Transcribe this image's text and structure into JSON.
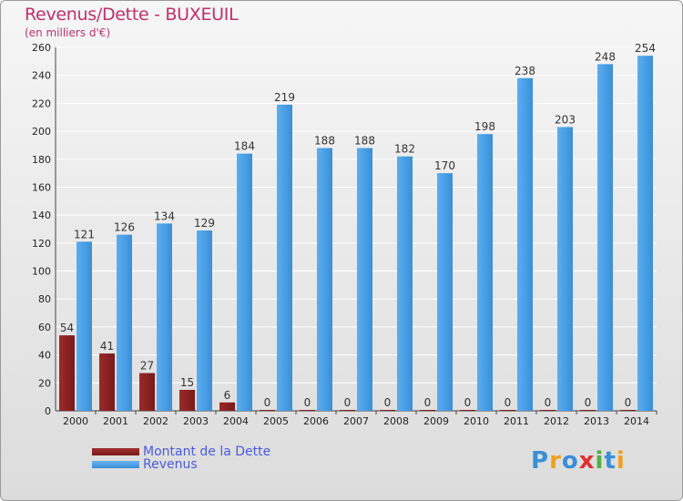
{
  "title": "Revenus/Dette - BUXEUIL",
  "subtitle": "(en milliers d'€)",
  "logo": {
    "letters": [
      {
        "char": "P",
        "color": "#3a8fd8"
      },
      {
        "char": "r",
        "color": "#f0a020"
      },
      {
        "char": "o",
        "color": "#3a8fd8"
      },
      {
        "char": "x",
        "color": "#e03030"
      },
      {
        "char": "i",
        "color": "#50b040"
      },
      {
        "char": "t",
        "color": "#3a8fd8"
      },
      {
        "char": "i",
        "color": "#f0a020"
      }
    ]
  },
  "colors": {
    "dette": "#7a1a1a",
    "revenus": "#3a8fd8",
    "grid": "#ffffff",
    "axis_text": "#222222"
  },
  "chart_data": {
    "type": "bar",
    "title": "Revenus/Dette - BUXEUIL",
    "subtitle": "(en milliers d'€)",
    "categories": [
      "2000",
      "2001",
      "2002",
      "2003",
      "2004",
      "2005",
      "2006",
      "2007",
      "2008",
      "2009",
      "2010",
      "2011",
      "2012",
      "2013",
      "2014"
    ],
    "series": [
      {
        "name": "Montant de la Dette",
        "values": [
          54,
          41,
          27,
          15,
          6,
          0,
          0,
          0,
          0,
          0,
          0,
          0,
          0,
          0,
          0
        ]
      },
      {
        "name": "Revenus",
        "values": [
          121,
          126,
          134,
          129,
          184,
          219,
          188,
          188,
          182,
          170,
          198,
          238,
          203,
          248,
          254
        ]
      }
    ],
    "ylim": [
      0,
      260
    ],
    "yticks": [
      "0",
      "20",
      "40",
      "60",
      "80",
      "100",
      "120",
      "140",
      "160",
      "180",
      "200",
      "220",
      "240",
      "260"
    ],
    "grid": true,
    "legend": "bottom-left"
  }
}
